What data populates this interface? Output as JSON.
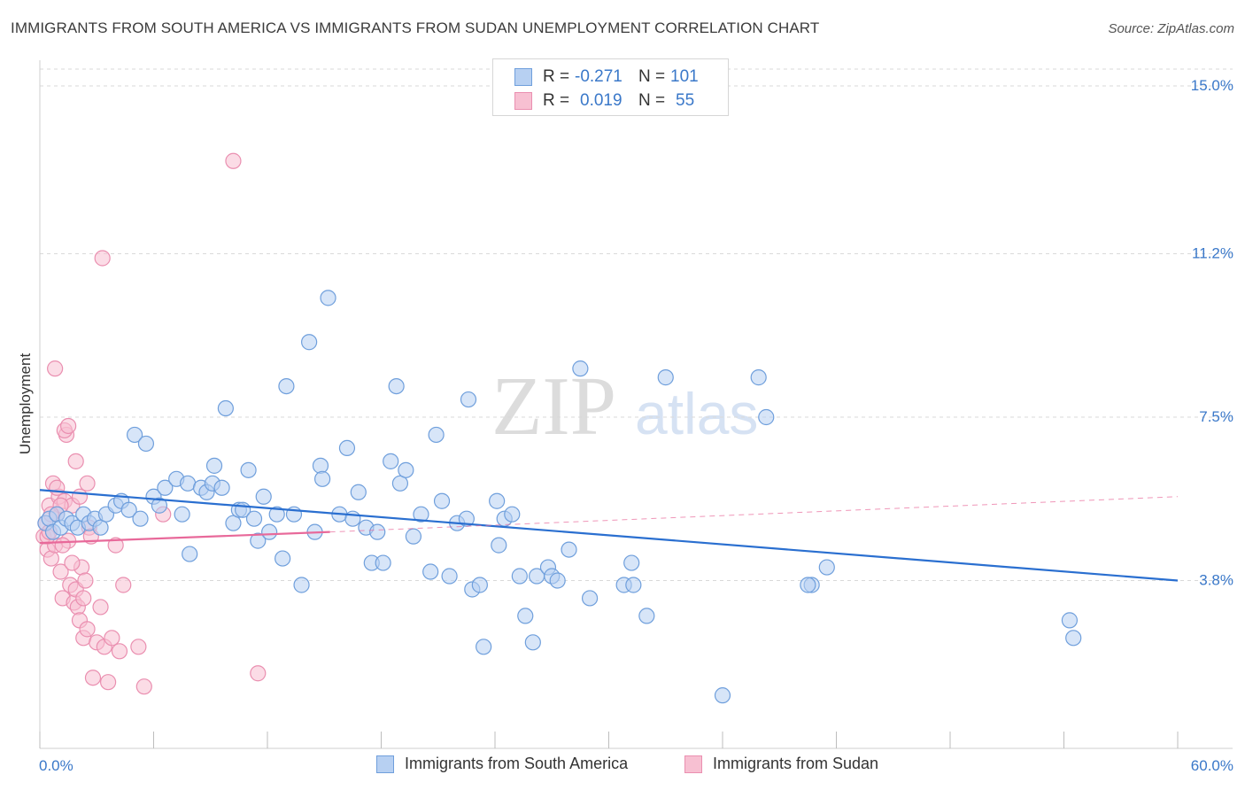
{
  "header": {
    "title": "IMMIGRANTS FROM SOUTH AMERICA VS IMMIGRANTS FROM SUDAN UNEMPLOYMENT CORRELATION CHART",
    "source": "Source: ZipAtlas.com"
  },
  "colors": {
    "blue_fill": "#b7d0f2",
    "blue_stroke": "#6f9fdc",
    "blue_line": "#2a6fd0",
    "pink_fill": "#f7c0d2",
    "pink_stroke": "#ea8fb0",
    "pink_line": "#e8699a",
    "grid": "#d9d9d9",
    "tick_text": "#3a78c9"
  },
  "stats_legend": {
    "rows": [
      {
        "r_label": "R =",
        "r_value": "-0.271",
        "n_label": "N =",
        "n_value": "101"
      },
      {
        "r_label": "R =",
        "r_value": "0.019",
        "n_label": "N =",
        "n_value": "55"
      }
    ]
  },
  "watermark": {
    "zip": "ZIP",
    "atlas": "atlas"
  },
  "chart_data": {
    "type": "scatter",
    "title": "IMMIGRANTS FROM SOUTH AMERICA VS IMMIGRANTS FROM SUDAN UNEMPLOYMENT CORRELATION CHART",
    "xlabel": "",
    "ylabel": "Unemployment",
    "xlim": [
      0,
      60
    ],
    "ylim": [
      0,
      15.4
    ],
    "x_tick_labels": [
      "0.0%",
      "60.0%"
    ],
    "y_ticks": [
      3.8,
      7.5,
      11.2,
      15.0
    ],
    "y_tick_labels": [
      "3.8%",
      "7.5%",
      "11.2%",
      "15.0%"
    ],
    "legend": [
      "Immigrants from South America",
      "Immigrants from Sudan"
    ],
    "series": [
      {
        "name": "Immigrants from South America",
        "trend": {
          "x0": 0,
          "y0": 5.85,
          "x1": 60,
          "y1": 3.8
        },
        "points": [
          [
            0.3,
            5.1
          ],
          [
            0.5,
            5.2
          ],
          [
            0.7,
            4.9
          ],
          [
            0.9,
            5.3
          ],
          [
            1.1,
            5.0
          ],
          [
            1.4,
            5.2
          ],
          [
            1.7,
            5.1
          ],
          [
            2.0,
            5.0
          ],
          [
            2.3,
            5.3
          ],
          [
            2.6,
            5.1
          ],
          [
            2.9,
            5.2
          ],
          [
            3.2,
            5.0
          ],
          [
            3.5,
            5.3
          ],
          [
            4.0,
            5.5
          ],
          [
            4.3,
            5.6
          ],
          [
            4.7,
            5.4
          ],
          [
            5.0,
            7.1
          ],
          [
            5.3,
            5.2
          ],
          [
            5.6,
            6.9
          ],
          [
            6.0,
            5.7
          ],
          [
            6.3,
            5.5
          ],
          [
            6.6,
            5.9
          ],
          [
            7.2,
            6.1
          ],
          [
            7.5,
            5.3
          ],
          [
            7.8,
            6.0
          ],
          [
            7.9,
            4.4
          ],
          [
            8.5,
            5.9
          ],
          [
            8.8,
            5.8
          ],
          [
            9.1,
            6.0
          ],
          [
            9.2,
            6.4
          ],
          [
            9.6,
            5.9
          ],
          [
            9.8,
            7.7
          ],
          [
            10.2,
            5.1
          ],
          [
            10.5,
            5.4
          ],
          [
            10.7,
            5.4
          ],
          [
            11.0,
            6.3
          ],
          [
            11.3,
            5.2
          ],
          [
            11.5,
            4.7
          ],
          [
            11.8,
            5.7
          ],
          [
            12.1,
            4.9
          ],
          [
            12.5,
            5.3
          ],
          [
            12.8,
            4.3
          ],
          [
            13.0,
            8.2
          ],
          [
            13.4,
            5.3
          ],
          [
            13.8,
            3.7
          ],
          [
            14.2,
            9.2
          ],
          [
            14.5,
            4.9
          ],
          [
            14.8,
            6.4
          ],
          [
            14.9,
            6.1
          ],
          [
            15.2,
            10.2
          ],
          [
            15.8,
            5.3
          ],
          [
            16.2,
            6.8
          ],
          [
            16.5,
            5.2
          ],
          [
            16.8,
            5.8
          ],
          [
            17.2,
            5.0
          ],
          [
            17.5,
            4.2
          ],
          [
            17.8,
            4.9
          ],
          [
            18.1,
            4.2
          ],
          [
            18.5,
            6.5
          ],
          [
            18.8,
            8.2
          ],
          [
            19.0,
            6.0
          ],
          [
            19.3,
            6.3
          ],
          [
            19.7,
            4.8
          ],
          [
            20.1,
            5.3
          ],
          [
            20.6,
            4.0
          ],
          [
            20.9,
            7.1
          ],
          [
            21.2,
            5.6
          ],
          [
            21.6,
            3.9
          ],
          [
            22.0,
            5.1
          ],
          [
            22.5,
            5.2
          ],
          [
            22.6,
            7.9
          ],
          [
            22.8,
            3.6
          ],
          [
            23.2,
            3.7
          ],
          [
            23.4,
            2.3
          ],
          [
            24.1,
            5.6
          ],
          [
            24.2,
            4.6
          ],
          [
            24.5,
            5.2
          ],
          [
            24.9,
            5.3
          ],
          [
            25.3,
            3.9
          ],
          [
            25.6,
            3.0
          ],
          [
            26.0,
            2.4
          ],
          [
            26.2,
            3.9
          ],
          [
            26.8,
            4.1
          ],
          [
            27.0,
            3.9
          ],
          [
            27.3,
            3.8
          ],
          [
            27.9,
            4.5
          ],
          [
            28.5,
            8.6
          ],
          [
            29.0,
            3.4
          ],
          [
            30.8,
            3.7
          ],
          [
            31.2,
            4.2
          ],
          [
            31.3,
            3.7
          ],
          [
            32.0,
            3.0
          ],
          [
            33.0,
            8.4
          ],
          [
            36.0,
            1.2
          ],
          [
            37.9,
            8.4
          ],
          [
            38.3,
            7.5
          ],
          [
            40.7,
            3.7
          ],
          [
            40.5,
            3.7
          ],
          [
            41.5,
            4.1
          ],
          [
            54.3,
            2.9
          ],
          [
            54.5,
            2.5
          ]
        ]
      },
      {
        "name": "Immigrants from Sudan",
        "trend": {
          "x0": 0,
          "y0": 4.65,
          "x1": 15.3,
          "y1": 4.9
        },
        "trend_dashed": {
          "x0": 15.3,
          "y0": 4.9,
          "x1": 60,
          "y1": 5.7
        },
        "points": [
          [
            0.2,
            4.8
          ],
          [
            0.3,
            5.1
          ],
          [
            0.4,
            4.5
          ],
          [
            0.5,
            5.5
          ],
          [
            0.6,
            4.3
          ],
          [
            0.7,
            6.0
          ],
          [
            0.8,
            4.6
          ],
          [
            0.9,
            5.3
          ],
          [
            1.0,
            5.7
          ],
          [
            1.1,
            4.0
          ],
          [
            1.2,
            3.4
          ],
          [
            1.3,
            5.6
          ],
          [
            1.4,
            7.1
          ],
          [
            1.5,
            4.7
          ],
          [
            1.6,
            3.7
          ],
          [
            1.7,
            5.5
          ],
          [
            1.8,
            3.3
          ],
          [
            1.9,
            3.6
          ],
          [
            2.0,
            3.2
          ],
          [
            2.1,
            2.9
          ],
          [
            2.2,
            4.1
          ],
          [
            2.3,
            2.5
          ],
          [
            2.4,
            3.8
          ],
          [
            2.5,
            6.0
          ],
          [
            2.6,
            5.0
          ],
          [
            2.7,
            4.8
          ],
          [
            2.8,
            1.6
          ],
          [
            3.0,
            2.4
          ],
          [
            3.2,
            3.2
          ],
          [
            3.4,
            2.3
          ],
          [
            3.6,
            1.5
          ],
          [
            3.8,
            2.5
          ],
          [
            4.0,
            4.6
          ],
          [
            4.2,
            2.2
          ],
          [
            4.4,
            3.7
          ],
          [
            5.2,
            2.3
          ],
          [
            5.5,
            1.4
          ],
          [
            6.5,
            5.3
          ],
          [
            1.3,
            7.2
          ],
          [
            1.5,
            7.3
          ],
          [
            0.8,
            8.6
          ],
          [
            3.3,
            11.1
          ],
          [
            10.2,
            13.3
          ],
          [
            11.5,
            1.7
          ],
          [
            1.9,
            6.5
          ],
          [
            1.1,
            5.5
          ],
          [
            0.4,
            4.8
          ],
          [
            0.6,
            5.3
          ],
          [
            1.2,
            4.6
          ],
          [
            2.5,
            2.7
          ],
          [
            2.3,
            3.4
          ],
          [
            0.9,
            5.9
          ],
          [
            1.7,
            4.2
          ],
          [
            2.1,
            5.7
          ],
          [
            0.5,
            4.9
          ]
        ]
      }
    ]
  },
  "bottom_legend": {
    "items": [
      {
        "label": "Immigrants from South America"
      },
      {
        "label": "Immigrants from Sudan"
      }
    ]
  }
}
